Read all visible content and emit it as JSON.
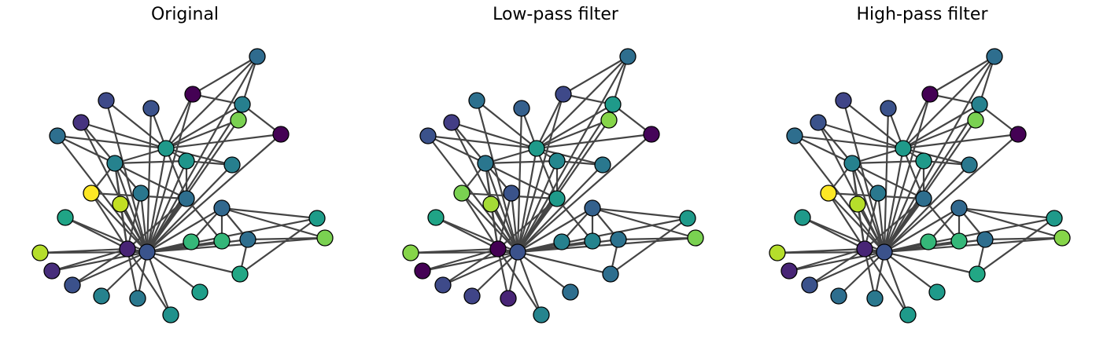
{
  "panels": [
    {
      "title": "Original",
      "node_colors": [
        "#3a548c",
        "#482475",
        "#2e6e8e",
        "#fde725",
        "#3b518b",
        "#26828e",
        "#2a788e",
        "#21918c",
        "#1f9e89",
        "#22a785",
        "#472d7b",
        "#b5de2b",
        "#20a486",
        "#c2df23",
        "#2a778e",
        "#3e4a89",
        "#3b528b",
        "#440154",
        "#46337f",
        "#2e6f8e",
        "#26828e",
        "#1f998a",
        "#1f958b",
        "#7ad151",
        "#2f6b8e",
        "#277f8e",
        "#440154",
        "#277f8e",
        "#34b679",
        "#35b779",
        "#2e6e8e",
        "#1e9c89",
        "#7ad151",
        "#31688e"
      ]
    },
    {
      "title": "Low-pass filter",
      "node_colors": [
        "#3b528b",
        "#440154",
        "#1f9a8a",
        "#7ad151",
        "#3e4a89",
        "#404588",
        "#482576",
        "#25848e",
        "#2e6e8e",
        "#2e6e8e",
        "#440154",
        "#86d549",
        "#20a486",
        "#a5db36",
        "#3a538b",
        "#2d708e",
        "#35608d",
        "#3e4989",
        "#433e85",
        "#3b528b",
        "#2a768e",
        "#1f9a8a",
        "#24878e",
        "#86d549",
        "#2e6e8e",
        "#1f9a8a",
        "#450559",
        "#2a788e",
        "#25848e",
        "#26818e",
        "#2c728e",
        "#1f9a8a",
        "#7ad151",
        "#34618d"
      ]
    },
    {
      "title": "High-pass filter",
      "node_colors": [
        "#3b528b",
        "#482576",
        "#2e6e8e",
        "#fde725",
        "#3b528b",
        "#2e6e8e",
        "#2a788e",
        "#1f9a8a",
        "#1f9a8a",
        "#22a785",
        "#482576",
        "#b5de2b",
        "#1f9a8a",
        "#b5de2b",
        "#2a788e",
        "#404588",
        "#3b528b",
        "#440154",
        "#3b528b",
        "#2e6e8e",
        "#26818e",
        "#1f9a8a",
        "#1f9a8a",
        "#7ad151",
        "#2e6e8e",
        "#26818e",
        "#440154",
        "#2a788e",
        "#35b779",
        "#35b779",
        "#2e6e8e",
        "#1f9a8a",
        "#86d549",
        "#31688e"
      ]
    }
  ]
}
